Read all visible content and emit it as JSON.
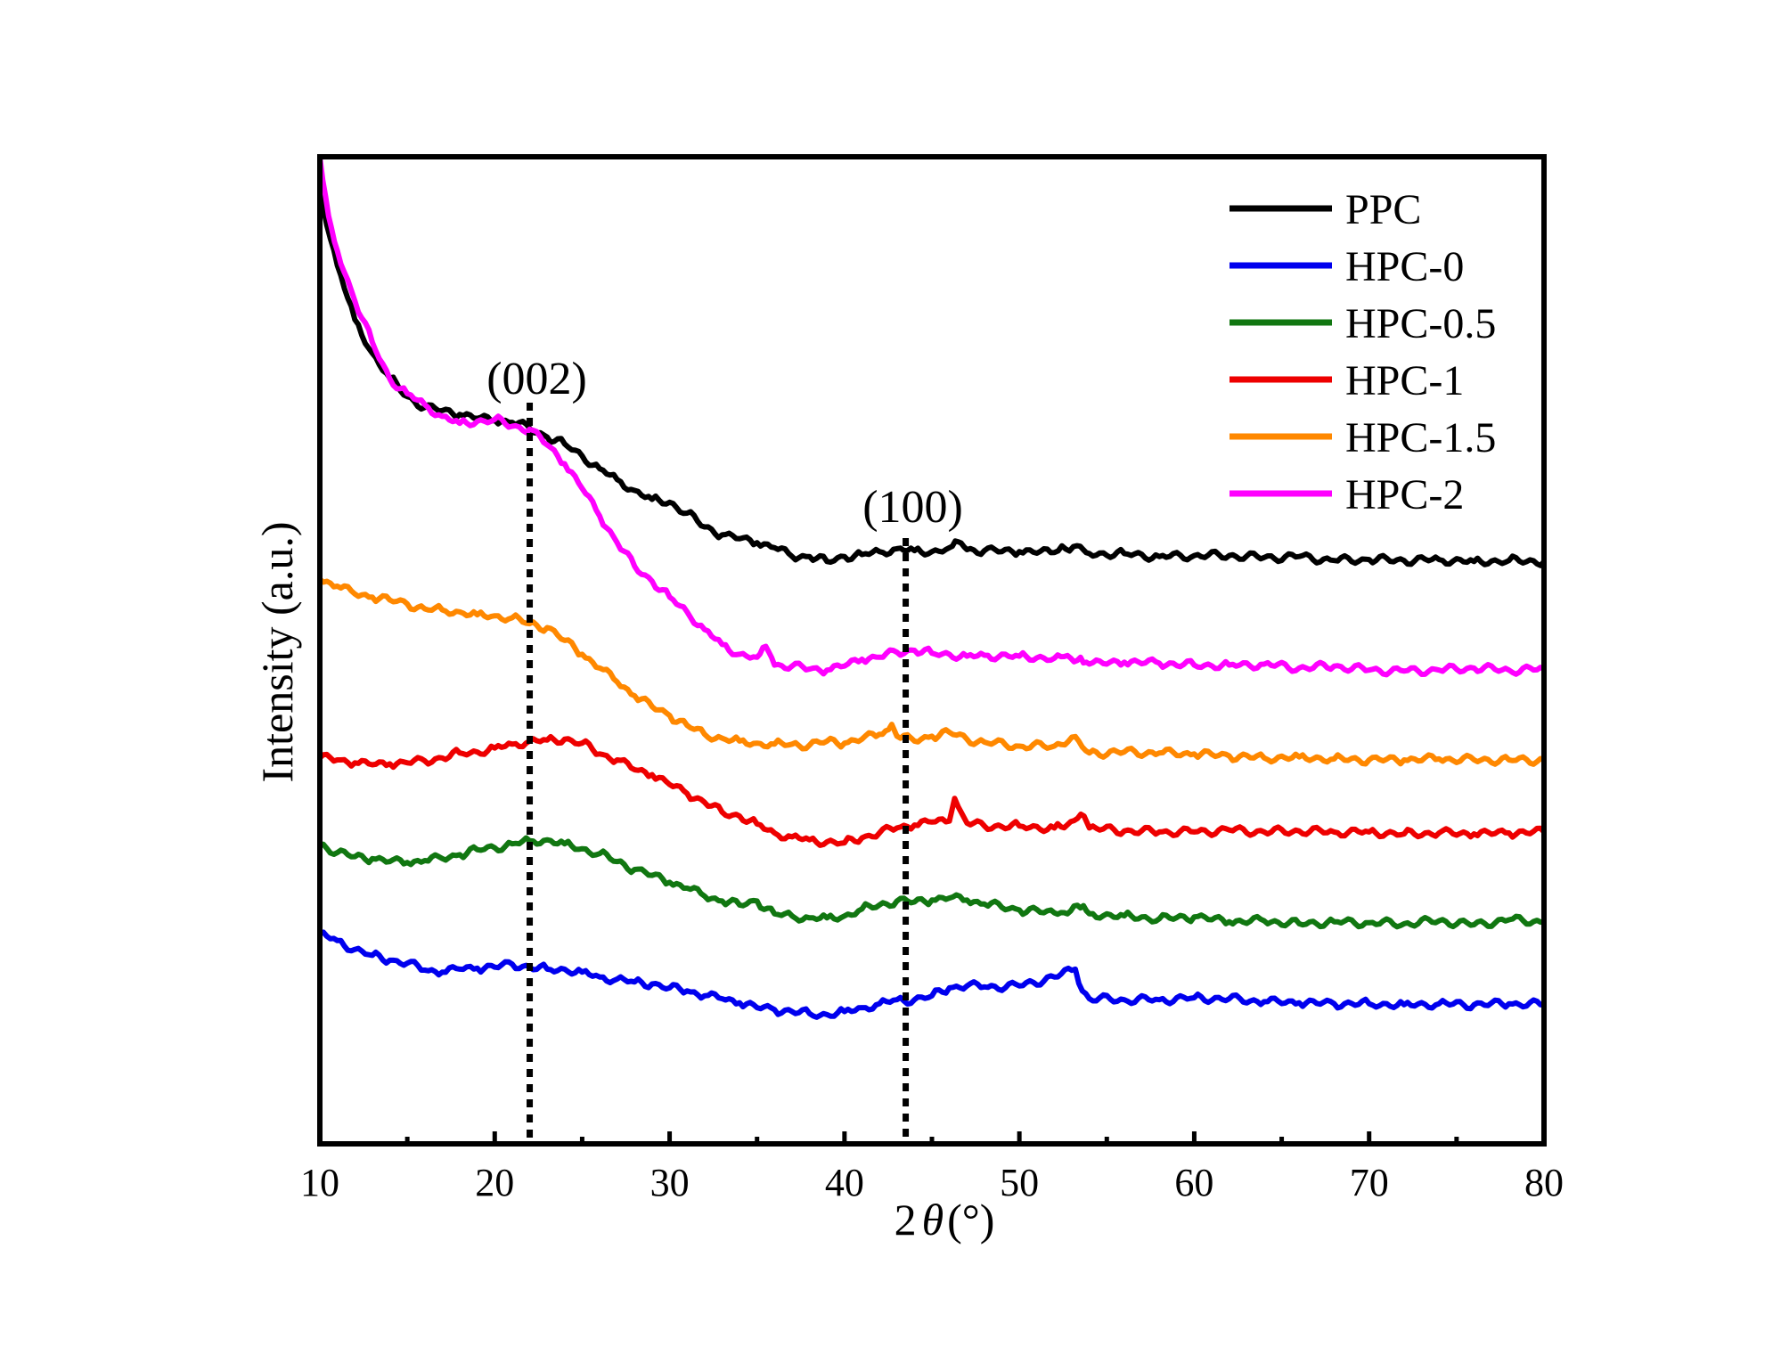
{
  "chart_data": {
    "type": "line",
    "title": "",
    "xlabel": "2θ(°)",
    "xlabel_main": "2",
    "xlabel_theta": "θ",
    "xlabel_unit": "(°)",
    "ylabel": "Intensity (a.u.)",
    "xlim": [
      10,
      80
    ],
    "ylim": [
      0,
      100
    ],
    "x_ticks": [
      10,
      20,
      30,
      40,
      50,
      60,
      70,
      80
    ],
    "x_tick_labels": [
      "10",
      "20",
      "30",
      "40",
      "50",
      "60",
      "70",
      "80"
    ],
    "y_ticks_shown": false,
    "grid": false,
    "legend_position": "top-right",
    "annotations": [
      {
        "label": "(002)",
        "x": 22
      },
      {
        "label": "(100)",
        "x": 43.5
      }
    ],
    "series": [
      {
        "name": "PPC",
        "color": "#000000",
        "x": [
          10,
          11,
          12,
          13,
          14,
          15,
          16,
          17,
          18,
          19,
          20,
          21,
          22,
          23,
          24,
          25,
          26,
          27,
          28,
          29,
          30,
          31,
          32,
          33,
          34,
          35,
          36,
          37,
          38,
          39,
          40,
          41,
          42,
          43,
          44,
          45,
          46,
          46.5,
          47,
          48,
          50,
          52,
          53.3,
          54,
          56,
          58,
          60,
          62,
          64,
          66,
          68,
          70,
          72,
          74,
          76,
          78,
          80
        ],
        "y": [
          96.5,
          89,
          83.5,
          80.1,
          77.6,
          75.7,
          74.6,
          74.3,
          73.9,
          73.5,
          73.3,
          73.1,
          72.5,
          71.6,
          70.9,
          69.7,
          68.4,
          67.3,
          66.2,
          65.3,
          65.0,
          63.9,
          62.5,
          61.7,
          61.3,
          60.9,
          60.4,
          59.5,
          59.5,
          59.0,
          59.5,
          59.7,
          60.0,
          60.3,
          60.1,
          60.0,
          60.4,
          61.0,
          60.2,
          60.1,
          60.0,
          59.9,
          60.6,
          59.8,
          59.8,
          59.5,
          59.6,
          59.6,
          59.4,
          59.5,
          59.1,
          59.2,
          59.1,
          59.2,
          59.0,
          59.1,
          59.0
        ]
      },
      {
        "name": "HPC-0",
        "color": "#0000ee",
        "x": [
          10,
          11,
          12,
          13,
          14,
          15,
          16,
          17,
          18,
          19,
          20,
          21,
          22,
          23,
          24,
          25,
          26,
          27,
          28,
          29,
          30,
          31,
          32,
          33,
          34,
          35,
          36,
          37,
          38,
          39,
          40,
          41,
          42,
          43,
          44,
          45,
          46,
          47,
          48,
          50,
          52,
          53.2,
          53.6,
          54,
          56,
          58,
          60,
          62,
          64,
          66,
          68,
          70,
          72,
          74,
          76,
          78,
          80
        ],
        "y": [
          21.3,
          20.6,
          19.7,
          19.1,
          18.6,
          18.3,
          17.6,
          17.4,
          17.7,
          17.8,
          17.9,
          18.2,
          17.9,
          17.7,
          17.7,
          17.4,
          16.9,
          16.7,
          16.4,
          16.2,
          15.8,
          15.5,
          15.0,
          14.7,
          14.3,
          13.8,
          13.6,
          13.4,
          13.2,
          13.1,
          13.4,
          13.8,
          14.2,
          14.6,
          14.6,
          15.0,
          15.8,
          16.0,
          15.9,
          16.0,
          16.9,
          17.7,
          15.5,
          14.7,
          14.6,
          14.6,
          14.8,
          14.7,
          14.4,
          14.3,
          14.2,
          14.2,
          14.1,
          14.2,
          14.1,
          14.2,
          14.1
        ]
      },
      {
        "name": "HPC-0.5",
        "color": "#117711",
        "x": [
          10,
          11,
          12,
          13,
          14,
          15,
          16,
          17,
          18,
          19,
          20,
          21,
          22,
          23,
          24,
          25,
          26,
          27,
          28,
          29,
          30,
          31,
          32,
          33,
          34,
          35,
          36,
          37,
          38,
          39,
          40,
          41,
          42,
          43,
          44,
          45,
          46,
          47,
          48,
          50,
          52,
          53.5,
          54,
          56,
          58,
          60,
          62,
          64,
          66,
          68,
          70,
          72,
          74,
          76,
          78,
          80
        ],
        "y": [
          30.4,
          29.5,
          29.1,
          28.9,
          28.6,
          28.5,
          28.7,
          28.9,
          29.3,
          29.8,
          30.0,
          30.4,
          30.7,
          30.8,
          30.4,
          29.9,
          29.4,
          28.6,
          27.8,
          27.2,
          26.5,
          25.9,
          25.1,
          24.6,
          24.2,
          24.6,
          23.3,
          23.1,
          22.9,
          22.9,
          23.1,
          23.8,
          24.2,
          24.6,
          24.5,
          24.7,
          24.9,
          24.7,
          24.3,
          23.7,
          23.4,
          23.9,
          23.3,
          23.1,
          22.8,
          23.0,
          22.5,
          22.6,
          22.3,
          22.5,
          22.4,
          22.3,
          22.6,
          22.2,
          22.7,
          22.5
        ]
      },
      {
        "name": "HPC-1",
        "color": "#ee0000",
        "x": [
          10,
          11,
          12,
          13,
          14,
          15,
          16,
          17,
          18,
          19,
          20,
          21,
          22,
          23,
          24,
          25,
          26,
          27,
          28,
          29,
          30,
          31,
          32,
          33,
          34,
          35,
          36,
          37,
          38,
          39,
          40,
          41,
          42,
          43,
          44,
          45,
          46,
          46.3,
          46.7,
          47,
          48,
          50,
          52,
          53.7,
          54,
          56,
          58,
          60,
          62,
          64,
          66,
          68,
          70,
          72,
          74,
          76,
          78,
          80
        ],
        "y": [
          39.1,
          38.9,
          38.6,
          38.4,
          38.5,
          38.6,
          38.8,
          39.1,
          39.6,
          39.7,
          40.1,
          40.5,
          40.8,
          40.9,
          41.0,
          40.6,
          39.5,
          38.9,
          37.9,
          37.4,
          36.4,
          35.5,
          34.6,
          33.6,
          33.2,
          32.4,
          31.5,
          31.1,
          30.8,
          30.6,
          30.5,
          31.0,
          31.5,
          32.0,
          32.3,
          32.6,
          32.7,
          35.0,
          33.5,
          32.5,
          32.2,
          32.2,
          32.0,
          33.2,
          32.0,
          31.7,
          31.6,
          31.6,
          31.8,
          31.6,
          31.7,
          31.6,
          31.6,
          31.4,
          31.5,
          31.4,
          31.5,
          31.6
        ]
      },
      {
        "name": "HPC-1.5",
        "color": "#ff8800",
        "x": [
          10,
          11,
          12,
          13,
          14,
          15,
          16,
          17,
          18,
          19,
          20,
          21,
          22,
          23,
          24,
          25,
          26,
          27,
          28,
          29,
          30,
          31,
          32,
          33,
          34,
          35,
          36,
          37,
          38,
          39,
          40,
          41,
          42,
          42.7,
          43,
          44,
          45,
          46,
          47,
          48,
          50,
          52,
          53,
          54,
          56,
          58,
          60,
          62,
          64,
          66,
          68,
          70,
          72,
          74,
          76,
          78,
          80
        ],
        "y": [
          57.2,
          56.5,
          55.7,
          55.4,
          55.1,
          54.7,
          54.2,
          54.1,
          53.9,
          53.6,
          53.5,
          53.3,
          52.7,
          52.3,
          51.0,
          49.6,
          48.2,
          46.8,
          45.4,
          44.3,
          43.4,
          42.4,
          41.5,
          41.1,
          40.8,
          40.6,
          40.5,
          40.5,
          40.4,
          40.8,
          40.6,
          41.0,
          41.5,
          42.5,
          41.3,
          40.8,
          41.3,
          41.7,
          41.0,
          40.7,
          40.3,
          40.3,
          41.2,
          39.6,
          39.7,
          39.6,
          39.5,
          39.3,
          39.1,
          39.2,
          39.0,
          38.9,
          38.9,
          39.0,
          38.9,
          38.9,
          38.9
        ]
      },
      {
        "name": "HPC-2",
        "color": "#ff00ff",
        "x": [
          10,
          10.5,
          11,
          12,
          13,
          14,
          15,
          16,
          17,
          18,
          19,
          20,
          21,
          22,
          23,
          24,
          25,
          26,
          27,
          28,
          29,
          30,
          31,
          32,
          33,
          34,
          35,
          35.5,
          36,
          37,
          38,
          39,
          40,
          41,
          42,
          43,
          44,
          45,
          46,
          47,
          48,
          50,
          52,
          53.5,
          54,
          56,
          58,
          60,
          62,
          64,
          66,
          68,
          70,
          72,
          74,
          76,
          78,
          80
        ],
        "y": [
          100,
          94,
          90.5,
          85.4,
          81.2,
          77.5,
          76.0,
          74.9,
          73.7,
          73.0,
          73.2,
          73.4,
          72.7,
          72.4,
          70.8,
          68.9,
          66.4,
          63.6,
          60.9,
          58.5,
          57.0,
          55.4,
          53.9,
          52.1,
          50.6,
          49.6,
          49.3,
          50.4,
          48.5,
          48.4,
          48.1,
          48.0,
          48.4,
          49.1,
          49.3,
          49.8,
          50.0,
          49.7,
          49.6,
          49.4,
          49.5,
          49.4,
          49.2,
          49.3,
          48.6,
          48.8,
          48.7,
          48.5,
          48.5,
          48.6,
          48.2,
          48.4,
          48.0,
          47.9,
          48.0,
          48.2,
          48.0,
          48.1
        ]
      }
    ]
  }
}
